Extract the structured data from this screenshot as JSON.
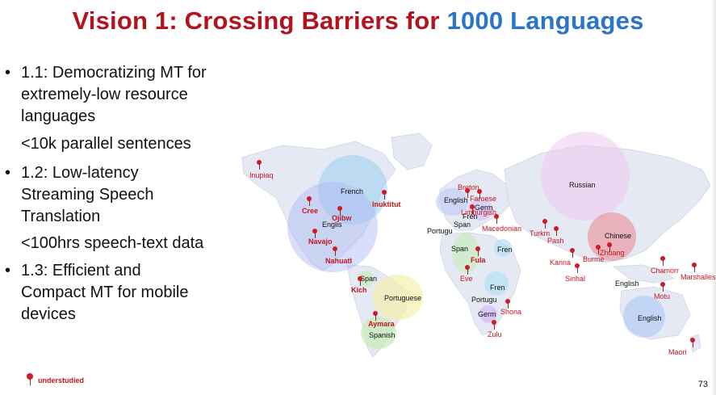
{
  "title": {
    "part1": "Vision 1: Crossing Barriers for ",
    "part2": "1000 Languages"
  },
  "bullets": [
    {
      "dot": "•",
      "lines": [
        "1.1: Democratizing MT for",
        "extremely-low resource",
        "languages"
      ],
      "detail": "<10k parallel sentences"
    },
    {
      "dot": "•",
      "lines": [
        "1.2: Low-latency",
        "Streaming Speech",
        "Translation"
      ],
      "detail": "<100hrs speech-text data"
    },
    {
      "dot": "•",
      "lines": [
        "1.3: Efficient and",
        "Compact MT for mobile",
        "devices"
      ],
      "detail": ""
    }
  ],
  "map": {
    "bubble_labels": {
      "french": "French",
      "english_na": "Englis",
      "russian": "Russian",
      "chinese": "Chinese",
      "portuguese_sa": "Portuguese",
      "spanish_sa": "Spanish",
      "english_eu": "English",
      "germ_eu": "Germ",
      "fren_eu": "Fren",
      "portugu_eu": "Portugu",
      "span_eu": "Span",
      "span_af": "Span",
      "fren_af1": "Fren",
      "fren_af2": "Fren",
      "portugu_af": "Portugu",
      "germ_af": "Germ",
      "spain_ca": "Span",
      "english_asia": "English",
      "english_aus": "English"
    },
    "understudied": {
      "inupiaq": "Inupiaq",
      "cree": "Cree",
      "ojibw": "Ojibw",
      "inuktitut": "Inuktitut",
      "navajo": "Navajo",
      "nahuatl": "Nahuatl",
      "kich": "Kich",
      "aymara": "Aymara",
      "breton": "Breton",
      "faroese": "Faroese",
      "limburgish": "Limburgish",
      "macedonian": "Macedonian",
      "fula": "Fula",
      "eve": "Eve",
      "shona": "Shona",
      "zulu": "Zulu",
      "turkm": "Turkm",
      "pash": "Pash",
      "kanna": "Kanna",
      "sinhal": "Sinhal",
      "burme": "Burme",
      "zhuang": "Zhuang",
      "chamorr": "Chamorr",
      "marshalles": "Marshalles",
      "motu": "Motu",
      "maori": "Maori"
    },
    "colors": {
      "title_red": "#b3121f",
      "title_blue": "#2a74c9",
      "pin_red": "#d21a24"
    }
  },
  "legend": {
    "label": "understudied",
    "icon": "map-pin-icon"
  },
  "page_number": "73"
}
